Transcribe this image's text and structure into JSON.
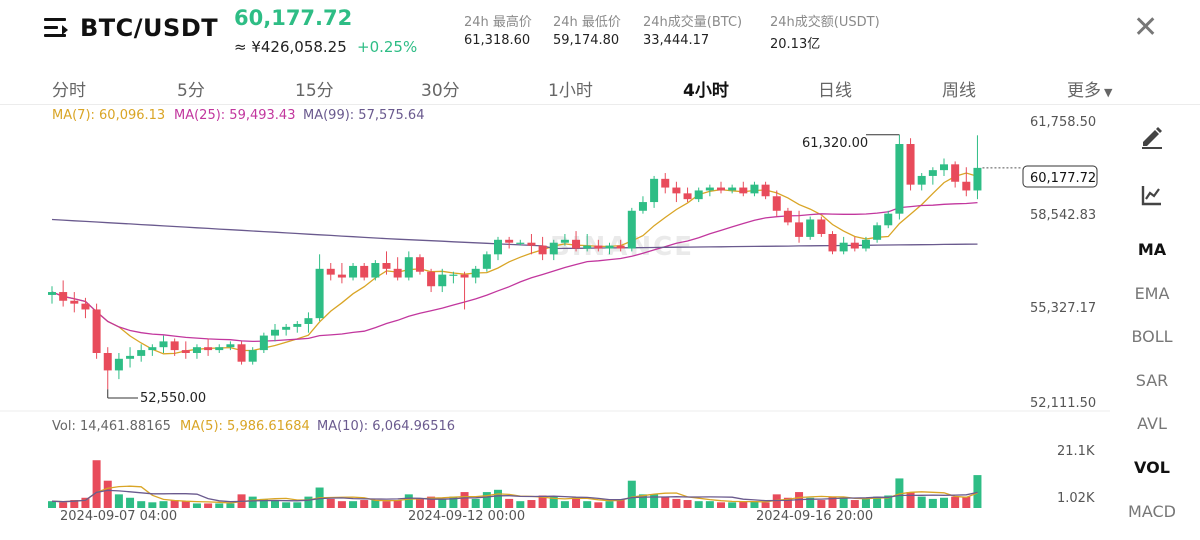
{
  "header": {
    "pair": "BTC/USDT",
    "last_price": "60,177.72",
    "approx_price": "≈ ¥426,058.25",
    "change_pct": "+0.25%",
    "stats": [
      {
        "label": "24h 最高价",
        "value": "61,318.60"
      },
      {
        "label": "24h 最低价",
        "value": "59,174.80"
      },
      {
        "label": "24h成交量(BTC)",
        "value": "33,444.17"
      },
      {
        "label": "24h成交额(USDT)",
        "value": "20.13亿"
      }
    ],
    "close_icon": "close-icon",
    "menu_icon": "menu-icon"
  },
  "tabs": [
    {
      "label": "分时",
      "active": false
    },
    {
      "label": "5分",
      "active": false
    },
    {
      "label": "15分",
      "active": false
    },
    {
      "label": "30分",
      "active": false
    },
    {
      "label": "1小时",
      "active": false
    },
    {
      "label": "4小时",
      "active": true
    },
    {
      "label": "日线",
      "active": false
    },
    {
      "label": "周线",
      "active": false
    },
    {
      "label": "更多",
      "active": false
    }
  ],
  "indicators": {
    "ma_legend": [
      {
        "label": "MA(7): 60,096.13",
        "color": "#d9a526"
      },
      {
        "label": "MA(25): 59,493.43",
        "color": "#c2379e"
      },
      {
        "label": "MA(99): 57,575.64",
        "color": "#6a5a8e"
      }
    ],
    "vol_legend": [
      {
        "label": "Vol: 14,461.88165",
        "color": "#666666"
      },
      {
        "label": "MA(5): 5,986.61684",
        "color": "#d9a526"
      },
      {
        "label": "MA(10): 6,064.96516",
        "color": "#6a5a8e"
      }
    ]
  },
  "price_axis": [
    "61,758.50",
    "58,542.83",
    "55,327.17",
    "52,111.50"
  ],
  "volume_axis": [
    "21.1K",
    "1.02K"
  ],
  "time_axis": [
    "2024-09-07 04:00",
    "2024-09-12 00:00",
    "2024-09-16 20:00"
  ],
  "annotations": {
    "high_label": "61,320.00",
    "low_label": "52,550.00",
    "current_label": "60,177.72"
  },
  "watermark": "BINANCE",
  "side_panel": {
    "tools": [
      {
        "name": "pencil-icon"
      },
      {
        "name": "chart-settings-icon"
      }
    ],
    "items": [
      {
        "label": "MA",
        "active": true
      },
      {
        "label": "EMA",
        "active": false
      },
      {
        "label": "BOLL",
        "active": false
      },
      {
        "label": "SAR",
        "active": false
      },
      {
        "label": "AVL",
        "active": false
      },
      {
        "label": "VOL",
        "active": true
      },
      {
        "label": "MACD",
        "active": false
      }
    ]
  },
  "colors": {
    "up": "#2ebd85",
    "down": "#e84b5b",
    "ma7": "#d9a526",
    "ma25": "#c2379e",
    "ma99": "#6a5a8e"
  },
  "chart_data": {
    "type": "candlestick",
    "interval": "4h",
    "time_range": [
      "2024-09-07 04:00",
      "2024-09-19"
    ],
    "ylim": [
      52111.5,
      61758.5
    ],
    "volume_ylim": [
      0,
      21100
    ],
    "candles": [
      {
        "o": 55800,
        "h": 56100,
        "l": 55500,
        "c": 55900,
        "v": 3000
      },
      {
        "o": 55900,
        "h": 56300,
        "l": 55400,
        "c": 55600,
        "v": 2500
      },
      {
        "o": 55600,
        "h": 55900,
        "l": 55200,
        "c": 55500,
        "v": 3500
      },
      {
        "o": 55500,
        "h": 55700,
        "l": 55000,
        "c": 55300,
        "v": 4500
      },
      {
        "o": 55300,
        "h": 55500,
        "l": 53600,
        "c": 53800,
        "v": 21000
      },
      {
        "o": 53800,
        "h": 54000,
        "l": 52550,
        "c": 53200,
        "v": 12000
      },
      {
        "o": 53200,
        "h": 53800,
        "l": 52900,
        "c": 53600,
        "v": 6000
      },
      {
        "o": 53600,
        "h": 54000,
        "l": 53300,
        "c": 53700,
        "v": 4500
      },
      {
        "o": 53700,
        "h": 54100,
        "l": 53500,
        "c": 53900,
        "v": 3000
      },
      {
        "o": 53900,
        "h": 54100,
        "l": 53700,
        "c": 54000,
        "v": 2500
      },
      {
        "o": 54000,
        "h": 54400,
        "l": 53800,
        "c": 54200,
        "v": 3000
      },
      {
        "o": 54200,
        "h": 54300,
        "l": 53700,
        "c": 53900,
        "v": 3500
      },
      {
        "o": 53900,
        "h": 54200,
        "l": 53600,
        "c": 53800,
        "v": 3000
      },
      {
        "o": 53800,
        "h": 54100,
        "l": 53600,
        "c": 54000,
        "v": 2000
      },
      {
        "o": 54000,
        "h": 54300,
        "l": 53700,
        "c": 53900,
        "v": 2000
      },
      {
        "o": 53900,
        "h": 54100,
        "l": 53800,
        "c": 54000,
        "v": 2000
      },
      {
        "o": 54000,
        "h": 54200,
        "l": 53900,
        "c": 54100,
        "v": 2000
      },
      {
        "o": 54100,
        "h": 54200,
        "l": 53400,
        "c": 53500,
        "v": 6000
      },
      {
        "o": 53500,
        "h": 54000,
        "l": 53400,
        "c": 53900,
        "v": 5000
      },
      {
        "o": 53900,
        "h": 54500,
        "l": 53800,
        "c": 54400,
        "v": 4000
      },
      {
        "o": 54400,
        "h": 54800,
        "l": 54200,
        "c": 54600,
        "v": 3500
      },
      {
        "o": 54600,
        "h": 54800,
        "l": 54400,
        "c": 54700,
        "v": 2500
      },
      {
        "o": 54700,
        "h": 54900,
        "l": 54500,
        "c": 54800,
        "v": 2500
      },
      {
        "o": 54800,
        "h": 55200,
        "l": 54500,
        "c": 55000,
        "v": 5000
      },
      {
        "o": 55000,
        "h": 57200,
        "l": 54900,
        "c": 56700,
        "v": 9000
      },
      {
        "o": 56700,
        "h": 56900,
        "l": 56300,
        "c": 56500,
        "v": 4000
      },
      {
        "o": 56500,
        "h": 56900,
        "l": 56200,
        "c": 56400,
        "v": 3000
      },
      {
        "o": 56400,
        "h": 56900,
        "l": 56300,
        "c": 56800,
        "v": 3000
      },
      {
        "o": 56800,
        "h": 56900,
        "l": 56300,
        "c": 56400,
        "v": 3500
      },
      {
        "o": 56400,
        "h": 57000,
        "l": 56300,
        "c": 56900,
        "v": 3500
      },
      {
        "o": 56900,
        "h": 57300,
        "l": 56500,
        "c": 56700,
        "v": 3000
      },
      {
        "o": 56700,
        "h": 57100,
        "l": 56300,
        "c": 56400,
        "v": 3500
      },
      {
        "o": 56400,
        "h": 57300,
        "l": 56300,
        "c": 57100,
        "v": 6000
      },
      {
        "o": 57100,
        "h": 57200,
        "l": 56500,
        "c": 56600,
        "v": 4000
      },
      {
        "o": 56600,
        "h": 56700,
        "l": 55900,
        "c": 56100,
        "v": 5000
      },
      {
        "o": 56100,
        "h": 56700,
        "l": 55900,
        "c": 56500,
        "v": 4000
      },
      {
        "o": 56500,
        "h": 56600,
        "l": 56200,
        "c": 56500,
        "v": 5000
      },
      {
        "o": 56500,
        "h": 56600,
        "l": 55300,
        "c": 56400,
        "v": 7000
      },
      {
        "o": 56400,
        "h": 56800,
        "l": 56200,
        "c": 56700,
        "v": 4000
      },
      {
        "o": 56700,
        "h": 57300,
        "l": 56600,
        "c": 57200,
        "v": 7000
      },
      {
        "o": 57200,
        "h": 57800,
        "l": 57000,
        "c": 57700,
        "v": 8000
      },
      {
        "o": 57700,
        "h": 57800,
        "l": 57400,
        "c": 57600,
        "v": 4000
      },
      {
        "o": 57600,
        "h": 57700,
        "l": 57500,
        "c": 57600,
        "v": 3000
      },
      {
        "o": 57600,
        "h": 57900,
        "l": 57200,
        "c": 57500,
        "v": 3500
      },
      {
        "o": 57500,
        "h": 57800,
        "l": 57000,
        "c": 57200,
        "v": 5500
      },
      {
        "o": 57200,
        "h": 57700,
        "l": 57000,
        "c": 57600,
        "v": 5000
      },
      {
        "o": 57600,
        "h": 57900,
        "l": 57500,
        "c": 57700,
        "v": 3000
      },
      {
        "o": 57700,
        "h": 58000,
        "l": 57300,
        "c": 57400,
        "v": 4500
      },
      {
        "o": 57400,
        "h": 57900,
        "l": 57300,
        "c": 57500,
        "v": 3000
      },
      {
        "o": 57500,
        "h": 57700,
        "l": 57300,
        "c": 57400,
        "v": 2500
      },
      {
        "o": 57400,
        "h": 57600,
        "l": 57200,
        "c": 57500,
        "v": 3000
      },
      {
        "o": 57500,
        "h": 57700,
        "l": 57300,
        "c": 57400,
        "v": 3500
      },
      {
        "o": 57400,
        "h": 58800,
        "l": 57300,
        "c": 58700,
        "v": 12000
      },
      {
        "o": 58700,
        "h": 59200,
        "l": 58600,
        "c": 59000,
        "v": 6000
      },
      {
        "o": 59000,
        "h": 59900,
        "l": 58800,
        "c": 59800,
        "v": 6000
      },
      {
        "o": 59800,
        "h": 60000,
        "l": 59300,
        "c": 59500,
        "v": 5000
      },
      {
        "o": 59500,
        "h": 59700,
        "l": 59000,
        "c": 59300,
        "v": 4000
      },
      {
        "o": 59300,
        "h": 59500,
        "l": 59000,
        "c": 59100,
        "v": 3500
      },
      {
        "o": 59100,
        "h": 59500,
        "l": 59000,
        "c": 59400,
        "v": 3000
      },
      {
        "o": 59400,
        "h": 59600,
        "l": 59200,
        "c": 59500,
        "v": 3000
      },
      {
        "o": 59500,
        "h": 59700,
        "l": 59300,
        "c": 59400,
        "v": 2500
      },
      {
        "o": 59400,
        "h": 59600,
        "l": 59300,
        "c": 59500,
        "v": 2500
      },
      {
        "o": 59500,
        "h": 59700,
        "l": 59200,
        "c": 59300,
        "v": 3000
      },
      {
        "o": 59300,
        "h": 59700,
        "l": 59200,
        "c": 59600,
        "v": 3000
      },
      {
        "o": 59600,
        "h": 59700,
        "l": 59100,
        "c": 59200,
        "v": 2500
      },
      {
        "o": 59200,
        "h": 59400,
        "l": 58500,
        "c": 58700,
        "v": 6000
      },
      {
        "o": 58700,
        "h": 58800,
        "l": 58200,
        "c": 58300,
        "v": 4500
      },
      {
        "o": 58300,
        "h": 58700,
        "l": 57600,
        "c": 57800,
        "v": 7000
      },
      {
        "o": 57800,
        "h": 58500,
        "l": 57700,
        "c": 58400,
        "v": 4500
      },
      {
        "o": 58400,
        "h": 58500,
        "l": 57800,
        "c": 57900,
        "v": 3500
      },
      {
        "o": 57900,
        "h": 58000,
        "l": 57200,
        "c": 57300,
        "v": 5000
      },
      {
        "o": 57300,
        "h": 57800,
        "l": 57200,
        "c": 57600,
        "v": 4500
      },
      {
        "o": 57600,
        "h": 57800,
        "l": 57300,
        "c": 57400,
        "v": 3500
      },
      {
        "o": 57400,
        "h": 57800,
        "l": 57300,
        "c": 57700,
        "v": 4000
      },
      {
        "o": 57700,
        "h": 58300,
        "l": 57600,
        "c": 58200,
        "v": 5000
      },
      {
        "o": 58200,
        "h": 58700,
        "l": 58100,
        "c": 58600,
        "v": 5500
      },
      {
        "o": 58600,
        "h": 61320,
        "l": 58400,
        "c": 61000,
        "v": 13000
      },
      {
        "o": 61000,
        "h": 61200,
        "l": 59400,
        "c": 59600,
        "v": 7000
      },
      {
        "o": 59600,
        "h": 60000,
        "l": 59400,
        "c": 59900,
        "v": 5000
      },
      {
        "o": 59900,
        "h": 60200,
        "l": 59600,
        "c": 60100,
        "v": 4000
      },
      {
        "o": 60100,
        "h": 60500,
        "l": 59900,
        "c": 60300,
        "v": 4500
      },
      {
        "o": 60300,
        "h": 60400,
        "l": 59500,
        "c": 59700,
        "v": 5000
      },
      {
        "o": 59700,
        "h": 60200,
        "l": 59200,
        "c": 59400,
        "v": 5000
      },
      {
        "o": 59400,
        "h": 61300,
        "l": 59100,
        "c": 60178,
        "v": 14462
      }
    ]
  }
}
